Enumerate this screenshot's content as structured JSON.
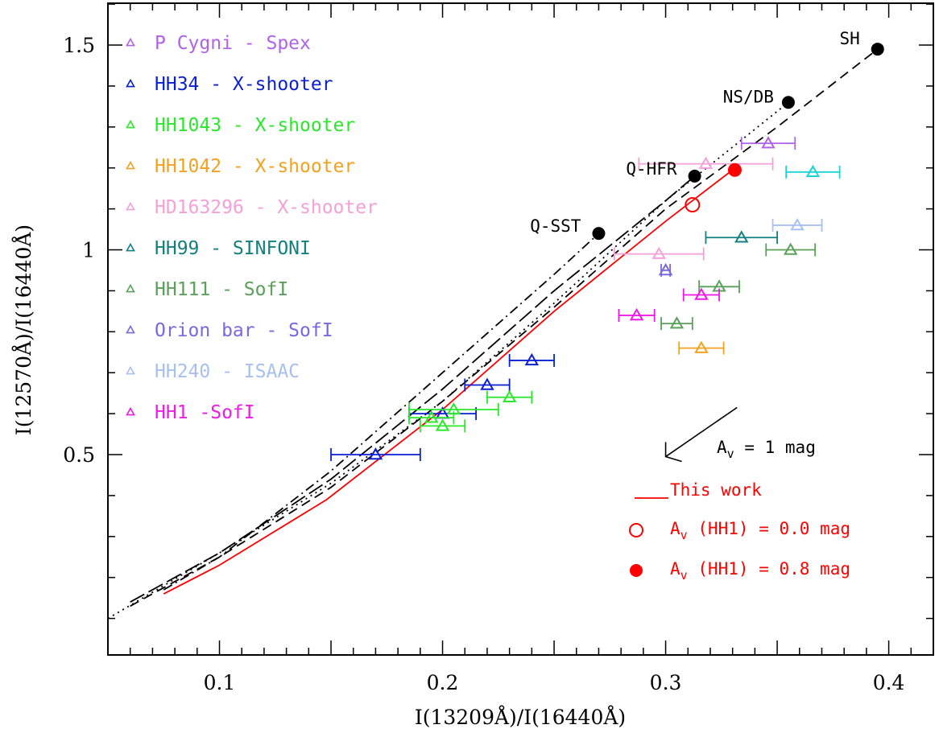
{
  "chart_data": {
    "type": "scatter",
    "xlabel": "I(13209Å)/I(16440Å)",
    "ylabel": "I(12570Å)/I(16440Å)",
    "xlim": [
      0.05,
      0.42
    ],
    "ylim": [
      0.0,
      1.6
    ],
    "xticks": [
      {
        "value": 0.1,
        "label": "0.1"
      },
      {
        "value": 0.2,
        "label": "0.2"
      },
      {
        "value": 0.3,
        "label": "0.3"
      },
      {
        "value": 0.4,
        "label": "0.4"
      }
    ],
    "yticks": [
      {
        "value": 0.5,
        "label": "0.5"
      },
      {
        "value": 1.0,
        "label": "1"
      },
      {
        "value": 1.5,
        "label": "1.5"
      }
    ],
    "observations": [
      {
        "name": "P Cygni - Spex",
        "color": "#b062e8",
        "points": [
          {
            "x": 0.346,
            "y": 1.26,
            "xerr": 0.012
          }
        ]
      },
      {
        "name": "HH34 - X-shooter",
        "color": "#0a1fd4",
        "points": [
          {
            "x": 0.17,
            "y": 0.5,
            "xerr": 0.02
          },
          {
            "x": 0.2,
            "y": 0.6,
            "xerr": 0.015
          },
          {
            "x": 0.22,
            "y": 0.67,
            "xerr": 0.01
          },
          {
            "x": 0.24,
            "y": 0.73,
            "xerr": 0.01
          }
        ]
      },
      {
        "name": "HH1043 - X-shooter",
        "color": "#2ae82a",
        "points": [
          {
            "x": 0.195,
            "y": 0.59,
            "xerr": 0.01
          },
          {
            "x": 0.205,
            "y": 0.61,
            "xerr": 0.02
          },
          {
            "x": 0.2,
            "y": 0.57,
            "xerr": 0.01
          },
          {
            "x": 0.23,
            "y": 0.64,
            "xerr": 0.01
          }
        ]
      },
      {
        "name": "HH1042 - X-shooter",
        "color": "#f2a21e",
        "points": [
          {
            "x": 0.316,
            "y": 0.76,
            "xerr": 0.01
          }
        ]
      },
      {
        "name": "HD163296 - X-shooter",
        "color": "#f5a0d8",
        "points": [
          {
            "x": 0.318,
            "y": 1.21,
            "xerr": 0.03
          },
          {
            "x": 0.297,
            "y": 0.99,
            "xerr": 0.02
          }
        ]
      },
      {
        "name": "HH99 - SINFONI",
        "color": "#138080",
        "points": [
          {
            "x": 0.334,
            "y": 1.03,
            "xerr": 0.016
          }
        ]
      },
      {
        "name": "HH111 - SofI",
        "color": "#5aa05a",
        "points": [
          {
            "x": 0.356,
            "y": 1.0,
            "xerr": 0.011
          },
          {
            "x": 0.324,
            "y": 0.91,
            "xerr": 0.009
          },
          {
            "x": 0.305,
            "y": 0.82,
            "xerr": 0.007
          }
        ]
      },
      {
        "name": "Orion bar - SofI",
        "color": "#7a68e0",
        "points": [
          {
            "x": 0.3,
            "y": 0.95,
            "xerr": 0.002
          }
        ]
      },
      {
        "name": "HH240 - ISAAC",
        "color": "#a8c0f0",
        "points": [
          {
            "x": 0.359,
            "y": 1.06,
            "xerr": 0.011
          }
        ]
      },
      {
        "name": "HH1 -SofI",
        "color": "#f019e8",
        "points": [
          {
            "x": 0.316,
            "y": 0.89,
            "xerr": 0.008
          },
          {
            "x": 0.287,
            "y": 0.84,
            "xerr": 0.008
          }
        ]
      },
      {
        "name": "",
        "color": "#1ad4d4",
        "points": [
          {
            "x": 0.366,
            "y": 1.19,
            "xerr": 0.012
          }
        ]
      }
    ],
    "models": [
      {
        "label": "SH",
        "dash": "12,7",
        "curve": [
          [
            0.06,
            0.13
          ],
          [
            0.1,
            0.25
          ],
          [
            0.15,
            0.42
          ],
          [
            0.2,
            0.63
          ],
          [
            0.25,
            0.86
          ],
          [
            0.3,
            1.1
          ],
          [
            0.35,
            1.3
          ],
          [
            0.395,
            1.49
          ]
        ]
      },
      {
        "label": "NS/DB",
        "dash": "2,5",
        "curve": [
          [
            0.05,
            0.1
          ],
          [
            0.1,
            0.26
          ],
          [
            0.15,
            0.43
          ],
          [
            0.2,
            0.63
          ],
          [
            0.25,
            0.87
          ],
          [
            0.3,
            1.12
          ],
          [
            0.355,
            1.36
          ]
        ]
      },
      {
        "label": "Q-HFR",
        "dash": "20,6",
        "curve": [
          [
            0.06,
            0.14
          ],
          [
            0.1,
            0.26
          ],
          [
            0.15,
            0.44
          ],
          [
            0.2,
            0.66
          ],
          [
            0.25,
            0.9
          ],
          [
            0.3,
            1.12
          ],
          [
            0.313,
            1.18
          ]
        ]
      },
      {
        "label": "Q-SST",
        "dash": "12,5,2,5",
        "curve": [
          [
            0.075,
            0.17
          ],
          [
            0.1,
            0.25
          ],
          [
            0.15,
            0.46
          ],
          [
            0.2,
            0.7
          ],
          [
            0.25,
            0.94
          ],
          [
            0.27,
            1.04
          ]
        ]
      }
    ],
    "model_endpoints": [
      {
        "label": "SH",
        "x": 0.395,
        "y": 1.49
      },
      {
        "label": "NS/DB",
        "x": 0.355,
        "y": 1.36
      },
      {
        "label": "Q-HFR",
        "x": 0.313,
        "y": 1.18
      },
      {
        "label": "Q-SST",
        "x": 0.27,
        "y": 1.04
      }
    ],
    "this_work": {
      "label": "This work",
      "color": "#ff0000",
      "curve": [
        [
          0.075,
          0.16
        ],
        [
          0.1,
          0.23
        ],
        [
          0.148,
          0.39
        ],
        [
          0.2,
          0.61
        ],
        [
          0.25,
          0.85
        ],
        [
          0.3,
          1.07
        ],
        [
          0.33,
          1.195
        ]
      ],
      "open_point": {
        "x": 0.312,
        "y": 1.11,
        "label": "A_v (HH1) = 0.0 mag"
      },
      "filled_point": {
        "x": 0.331,
        "y": 1.195,
        "label": "A_v (HH1) = 0.8 mag"
      }
    },
    "extinction_arrow": {
      "label": "A_v = 1 mag",
      "from": [
        0.332,
        0.615
      ],
      "to": [
        0.3,
        0.495
      ]
    },
    "key_text": {
      "this_work": "This work",
      "open_prefix": "A",
      "open_sub": "v",
      "open_suffix": " (HH1) = 0.0 mag",
      "filled_prefix": "A",
      "filled_sub": "v",
      "filled_suffix": " (HH1) = 0.8 mag",
      "av_prefix": "A",
      "av_sub": "v",
      "av_suffix": " = 1 mag"
    }
  }
}
